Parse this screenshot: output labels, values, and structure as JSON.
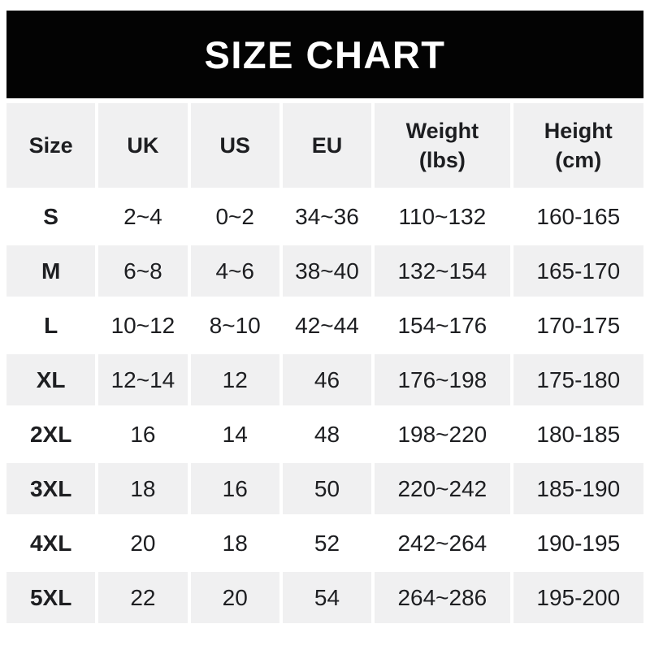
{
  "banner": {
    "title": "SIZE CHART",
    "bg_color": "#030303",
    "text_color": "#ffffff"
  },
  "table": {
    "columns": [
      {
        "key": "size",
        "label": "Size",
        "sub": ""
      },
      {
        "key": "uk",
        "label": "UK",
        "sub": ""
      },
      {
        "key": "us",
        "label": "US",
        "sub": ""
      },
      {
        "key": "eu",
        "label": "EU",
        "sub": ""
      },
      {
        "key": "weight",
        "label": "Weight",
        "sub": "(lbs)"
      },
      {
        "key": "height",
        "label": "Height",
        "sub": "(cm)"
      }
    ],
    "rows": [
      {
        "size": "S",
        "uk": "2~4",
        "us": "0~2",
        "eu": "34~36",
        "weight": "110~132",
        "height": "160-165"
      },
      {
        "size": "M",
        "uk": "6~8",
        "us": "4~6",
        "eu": "38~40",
        "weight": "132~154",
        "height": "165-170"
      },
      {
        "size": "L",
        "uk": "10~12",
        "us": "8~10",
        "eu": "42~44",
        "weight": "154~176",
        "height": "170-175"
      },
      {
        "size": "XL",
        "uk": "12~14",
        "us": "12",
        "eu": "46",
        "weight": "176~198",
        "height": "175-180"
      },
      {
        "size": "2XL",
        "uk": "16",
        "us": "14",
        "eu": "48",
        "weight": "198~220",
        "height": "180-185"
      },
      {
        "size": "3XL",
        "uk": "18",
        "us": "16",
        "eu": "50",
        "weight": "220~242",
        "height": "185-190"
      },
      {
        "size": "4XL",
        "uk": "20",
        "us": "18",
        "eu": "52",
        "weight": "242~264",
        "height": "190-195"
      },
      {
        "size": "5XL",
        "uk": "22",
        "us": "20",
        "eu": "54",
        "weight": "264~286",
        "height": "195-200"
      }
    ],
    "colors": {
      "stripe_bg": "#f0f0f1",
      "row_bg": "#ffffff",
      "text": "#1d1e21"
    }
  }
}
